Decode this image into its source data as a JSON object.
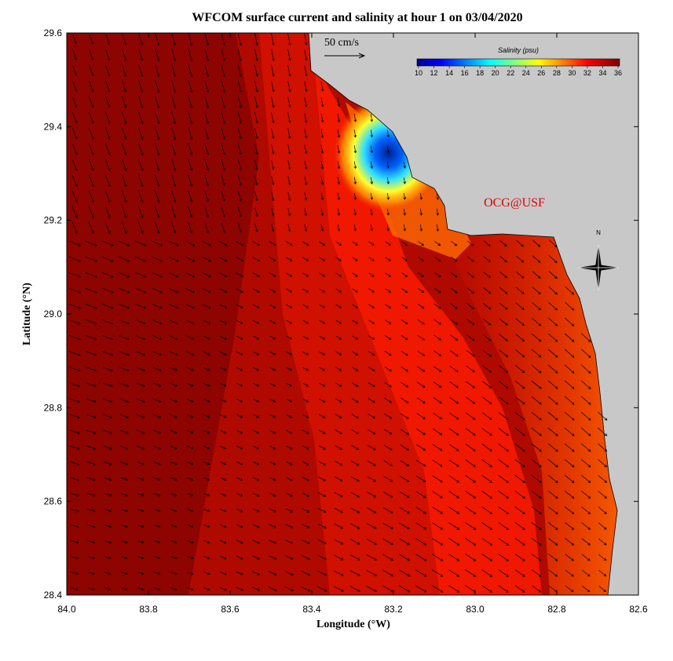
{
  "map": {
    "title": "WFCOM surface current and salinity at hour 1 on 03/04/2020",
    "xlabel": "Longitude (°W)",
    "ylabel": "Latitude (°N)",
    "xlim": [
      84.0,
      82.6
    ],
    "ylim": [
      28.4,
      29.6
    ],
    "xticks": [
      {
        "value": 84,
        "label": "84.0"
      },
      {
        "value": 83.8,
        "label": "83.8"
      },
      {
        "value": 83.6,
        "label": "83.6"
      },
      {
        "value": 83.4,
        "label": "83.4"
      },
      {
        "value": 83.2,
        "label": "83.2"
      },
      {
        "value": 83,
        "label": "83.0"
      },
      {
        "value": 82.8,
        "label": "82.8"
      },
      {
        "value": 82.6,
        "label": "82.6"
      }
    ],
    "yticks": [
      {
        "value": 28.4,
        "label": "28.4"
      },
      28.6,
      28.8,
      {
        "value": 29,
        "label": "29.0"
      },
      29.2,
      29.4,
      29.6
    ],
    "colorbar": {
      "label": "Salinity (psu)",
      "clim": [
        10,
        36
      ],
      "ticks": [
        10,
        12,
        14,
        16,
        18,
        20,
        22,
        24,
        26,
        28,
        30,
        32,
        34,
        36
      ]
    },
    "scale_label": "50 cm/s",
    "credit": "OCG@USF",
    "compass": "N"
  }
}
